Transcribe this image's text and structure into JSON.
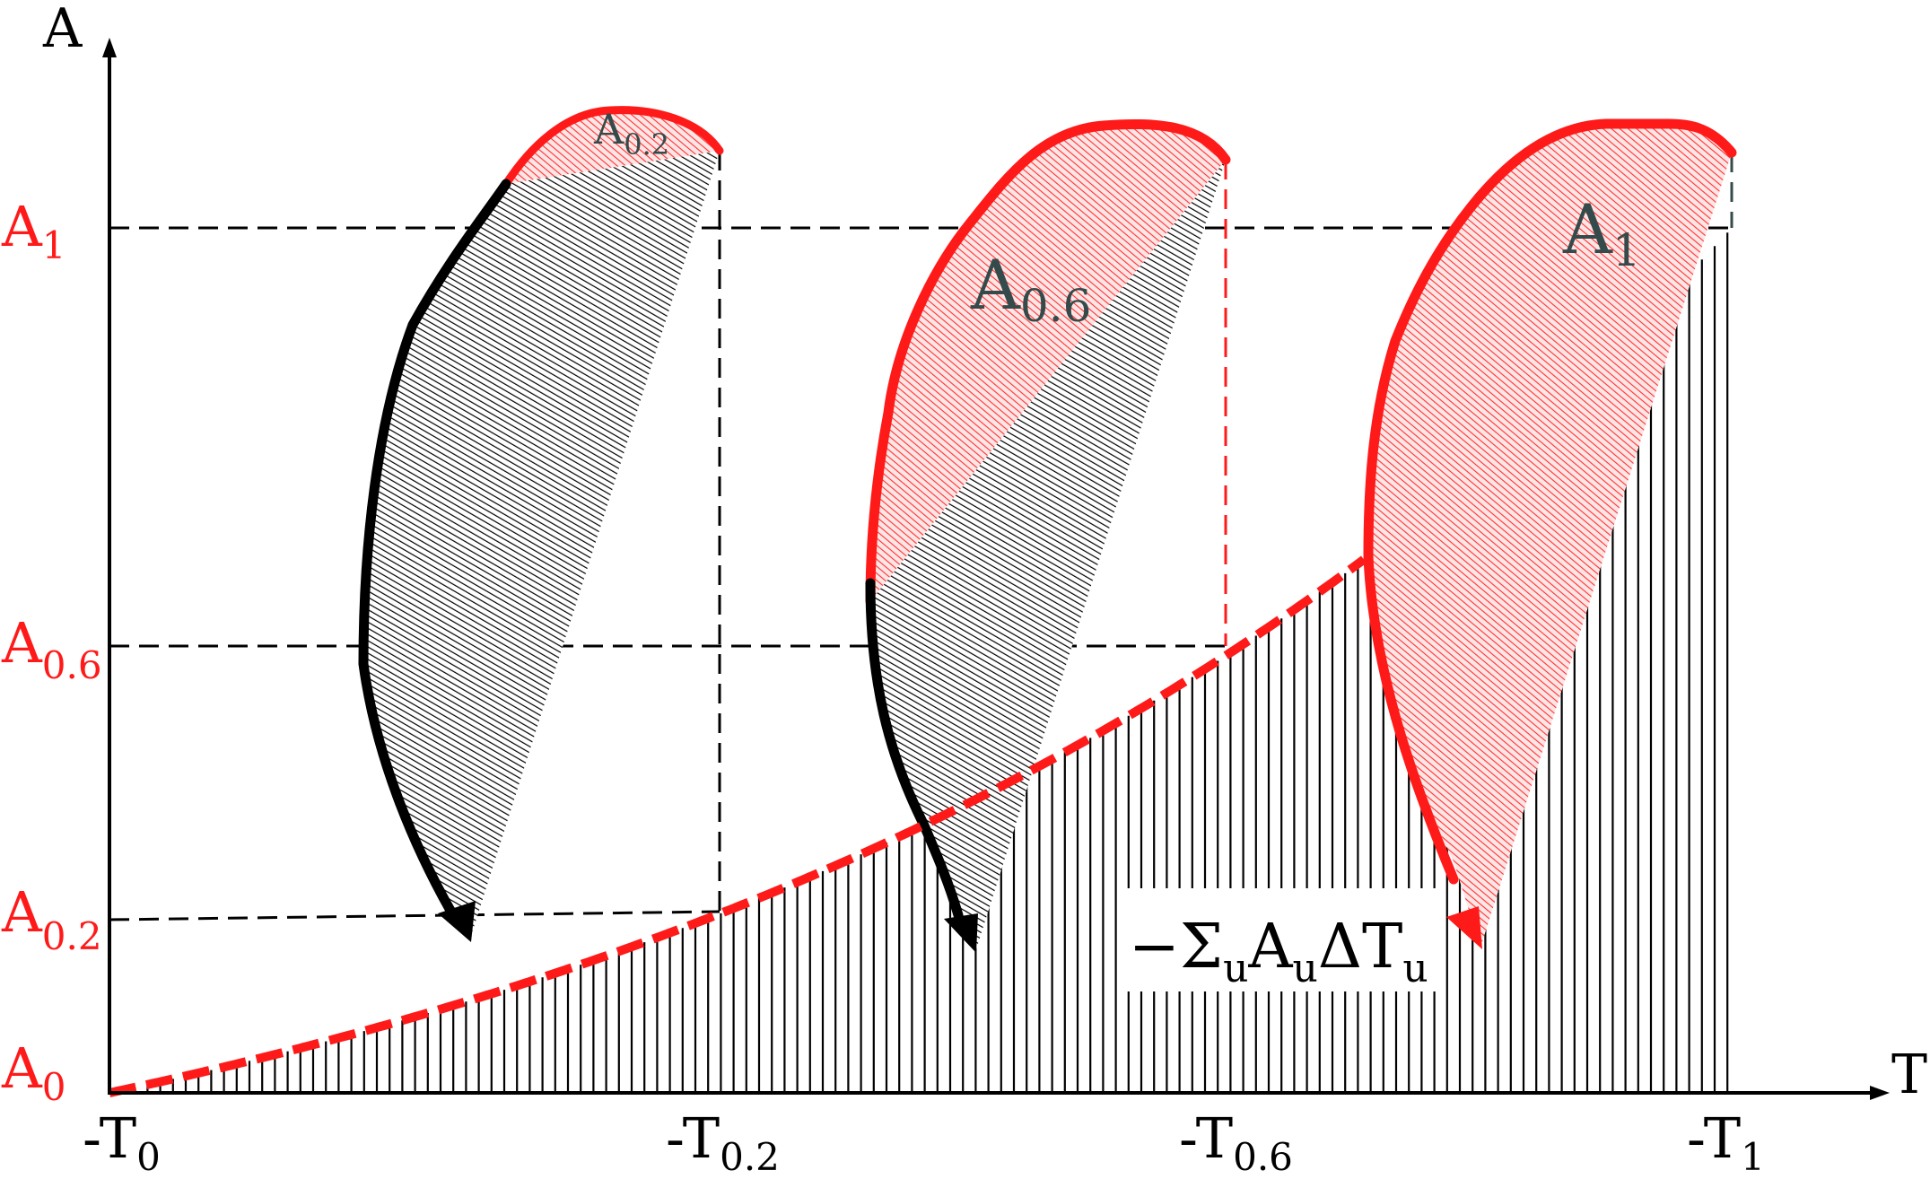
{
  "axes": {
    "y_label": "A",
    "x_label": "T"
  },
  "y_ticks": [
    {
      "key": "a1",
      "main": "A",
      "sub": "1"
    },
    {
      "key": "a06",
      "main": "A",
      "sub": "0.6"
    },
    {
      "key": "a02",
      "main": "A",
      "sub": "0.2"
    },
    {
      "key": "a0",
      "main": "A",
      "sub": "0"
    }
  ],
  "x_ticks": [
    {
      "key": "t0",
      "main": "-T",
      "sub": "0"
    },
    {
      "key": "t02",
      "main": "-T",
      "sub": "0.2"
    },
    {
      "key": "t06",
      "main": "-T",
      "sub": "0.6"
    },
    {
      "key": "t1",
      "main": "-T",
      "sub": "1"
    }
  ],
  "region_labels": [
    {
      "key": "a02",
      "main": "A",
      "sub": "0.2"
    },
    {
      "key": "a06",
      "main": "A",
      "sub": "0.6"
    },
    {
      "key": "a1",
      "main": "A",
      "sub": "1"
    }
  ],
  "formula": {
    "minus_sigma": "−Σ",
    "sub1": "u",
    "a": "A",
    "sub2": "u",
    "delta_t": "ΔT",
    "sub3": "u"
  },
  "colors": {
    "accent": "#ff1a1a",
    "region_label": "#354b4b",
    "ink": "#000000"
  }
}
